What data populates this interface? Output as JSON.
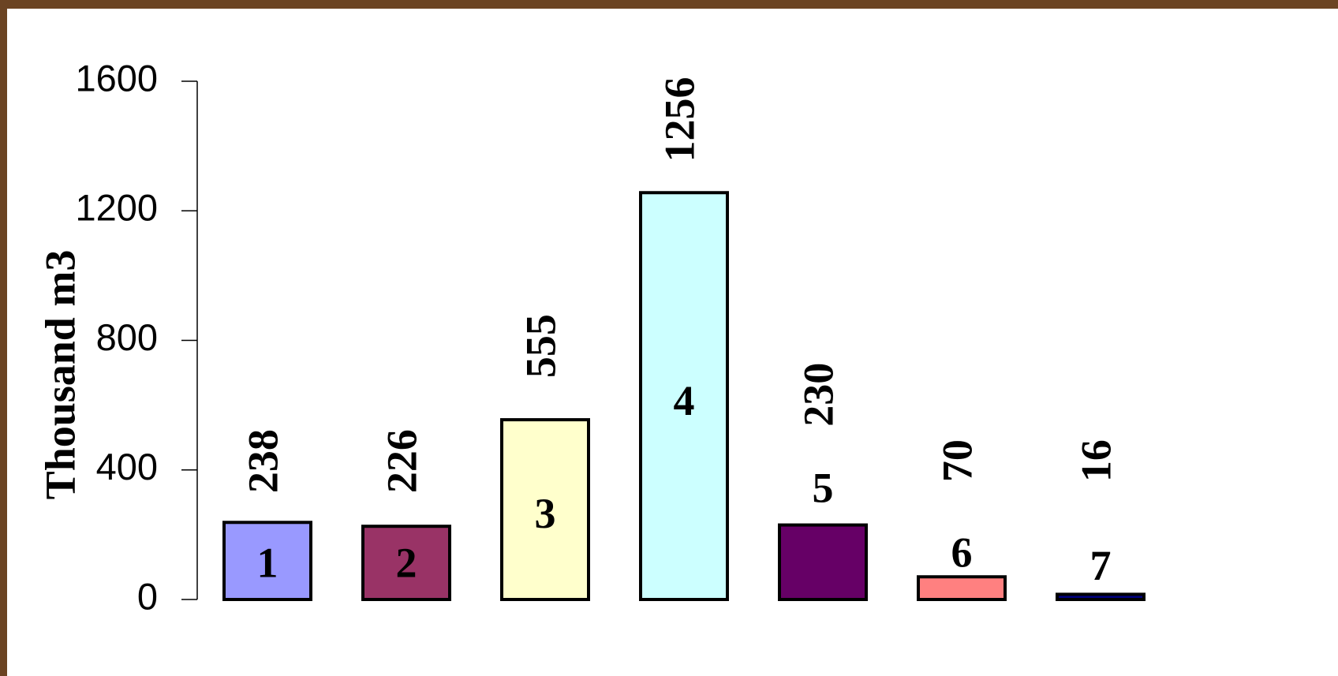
{
  "chart_data": {
    "type": "bar",
    "y_label": "Thousand m3",
    "categories": [
      "1",
      "2",
      "3",
      "4",
      "5",
      "6",
      "7"
    ],
    "values": [
      238,
      226,
      555,
      1256,
      230,
      70,
      16
    ],
    "colors": [
      "#9999ff",
      "#993366",
      "#ffffcc",
      "#ccffff",
      "#660066",
      "#ff8080",
      "#000080"
    ],
    "ylim": [
      0,
      1600
    ],
    "yticks": [
      0,
      400,
      800,
      1200,
      1600
    ],
    "grid": false
  }
}
